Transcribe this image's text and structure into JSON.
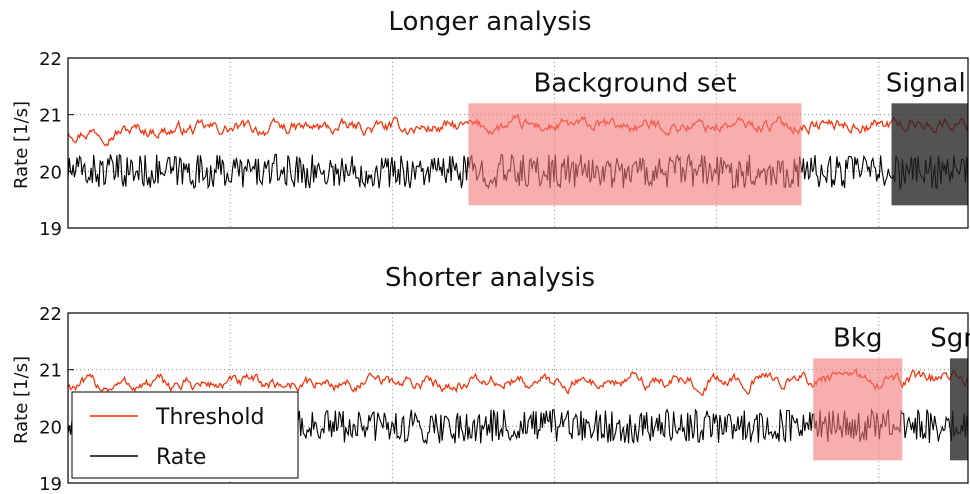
{
  "chart_data": [
    {
      "type": "line",
      "title": "Longer analysis",
      "ylabel": "Rate [1/s]",
      "xlabel": "",
      "xlim": [
        0,
        1000
      ],
      "ylim": [
        19,
        22
      ],
      "yticks": [
        19,
        20,
        21,
        22
      ],
      "grid": true,
      "series": [
        {
          "name": "Threshold",
          "color": "#ff2a00",
          "base": 20.72,
          "amplitude": 0.1
        },
        {
          "name": "Rate",
          "color": "#000000",
          "base": 20.0,
          "amplitude": 0.3
        }
      ],
      "annotations": [
        {
          "label": "Background set",
          "x_range": [
            445,
            815
          ],
          "y_range": [
            19.4,
            21.2
          ],
          "color": "#f07a78"
        },
        {
          "label": "Signal",
          "x_range": [
            915,
            1000
          ],
          "y_range": [
            19.4,
            21.2
          ],
          "color": "#222222"
        }
      ]
    },
    {
      "type": "line",
      "title": "Shorter analysis",
      "ylabel": "Rate [1/s]",
      "xlabel": "",
      "xlim": [
        0,
        1000
      ],
      "ylim": [
        19,
        22
      ],
      "yticks": [
        19,
        20,
        21,
        22
      ],
      "grid": true,
      "series": [
        {
          "name": "Threshold",
          "color": "#ff2a00",
          "base": 20.72,
          "amplitude": 0.1
        },
        {
          "name": "Rate",
          "color": "#000000",
          "base": 20.0,
          "amplitude": 0.3
        }
      ],
      "annotations": [
        {
          "label": "Bkg",
          "x_range": [
            828,
            927
          ],
          "y_range": [
            19.4,
            21.2
          ],
          "color": "#f07a78"
        },
        {
          "label": "Sgn",
          "x_range": [
            980,
            1000
          ],
          "y_range": [
            19.4,
            21.2
          ],
          "color": "#222222"
        }
      ],
      "legend": {
        "placement": "lower-left",
        "entries": [
          "Threshold",
          "Rate"
        ]
      }
    }
  ]
}
